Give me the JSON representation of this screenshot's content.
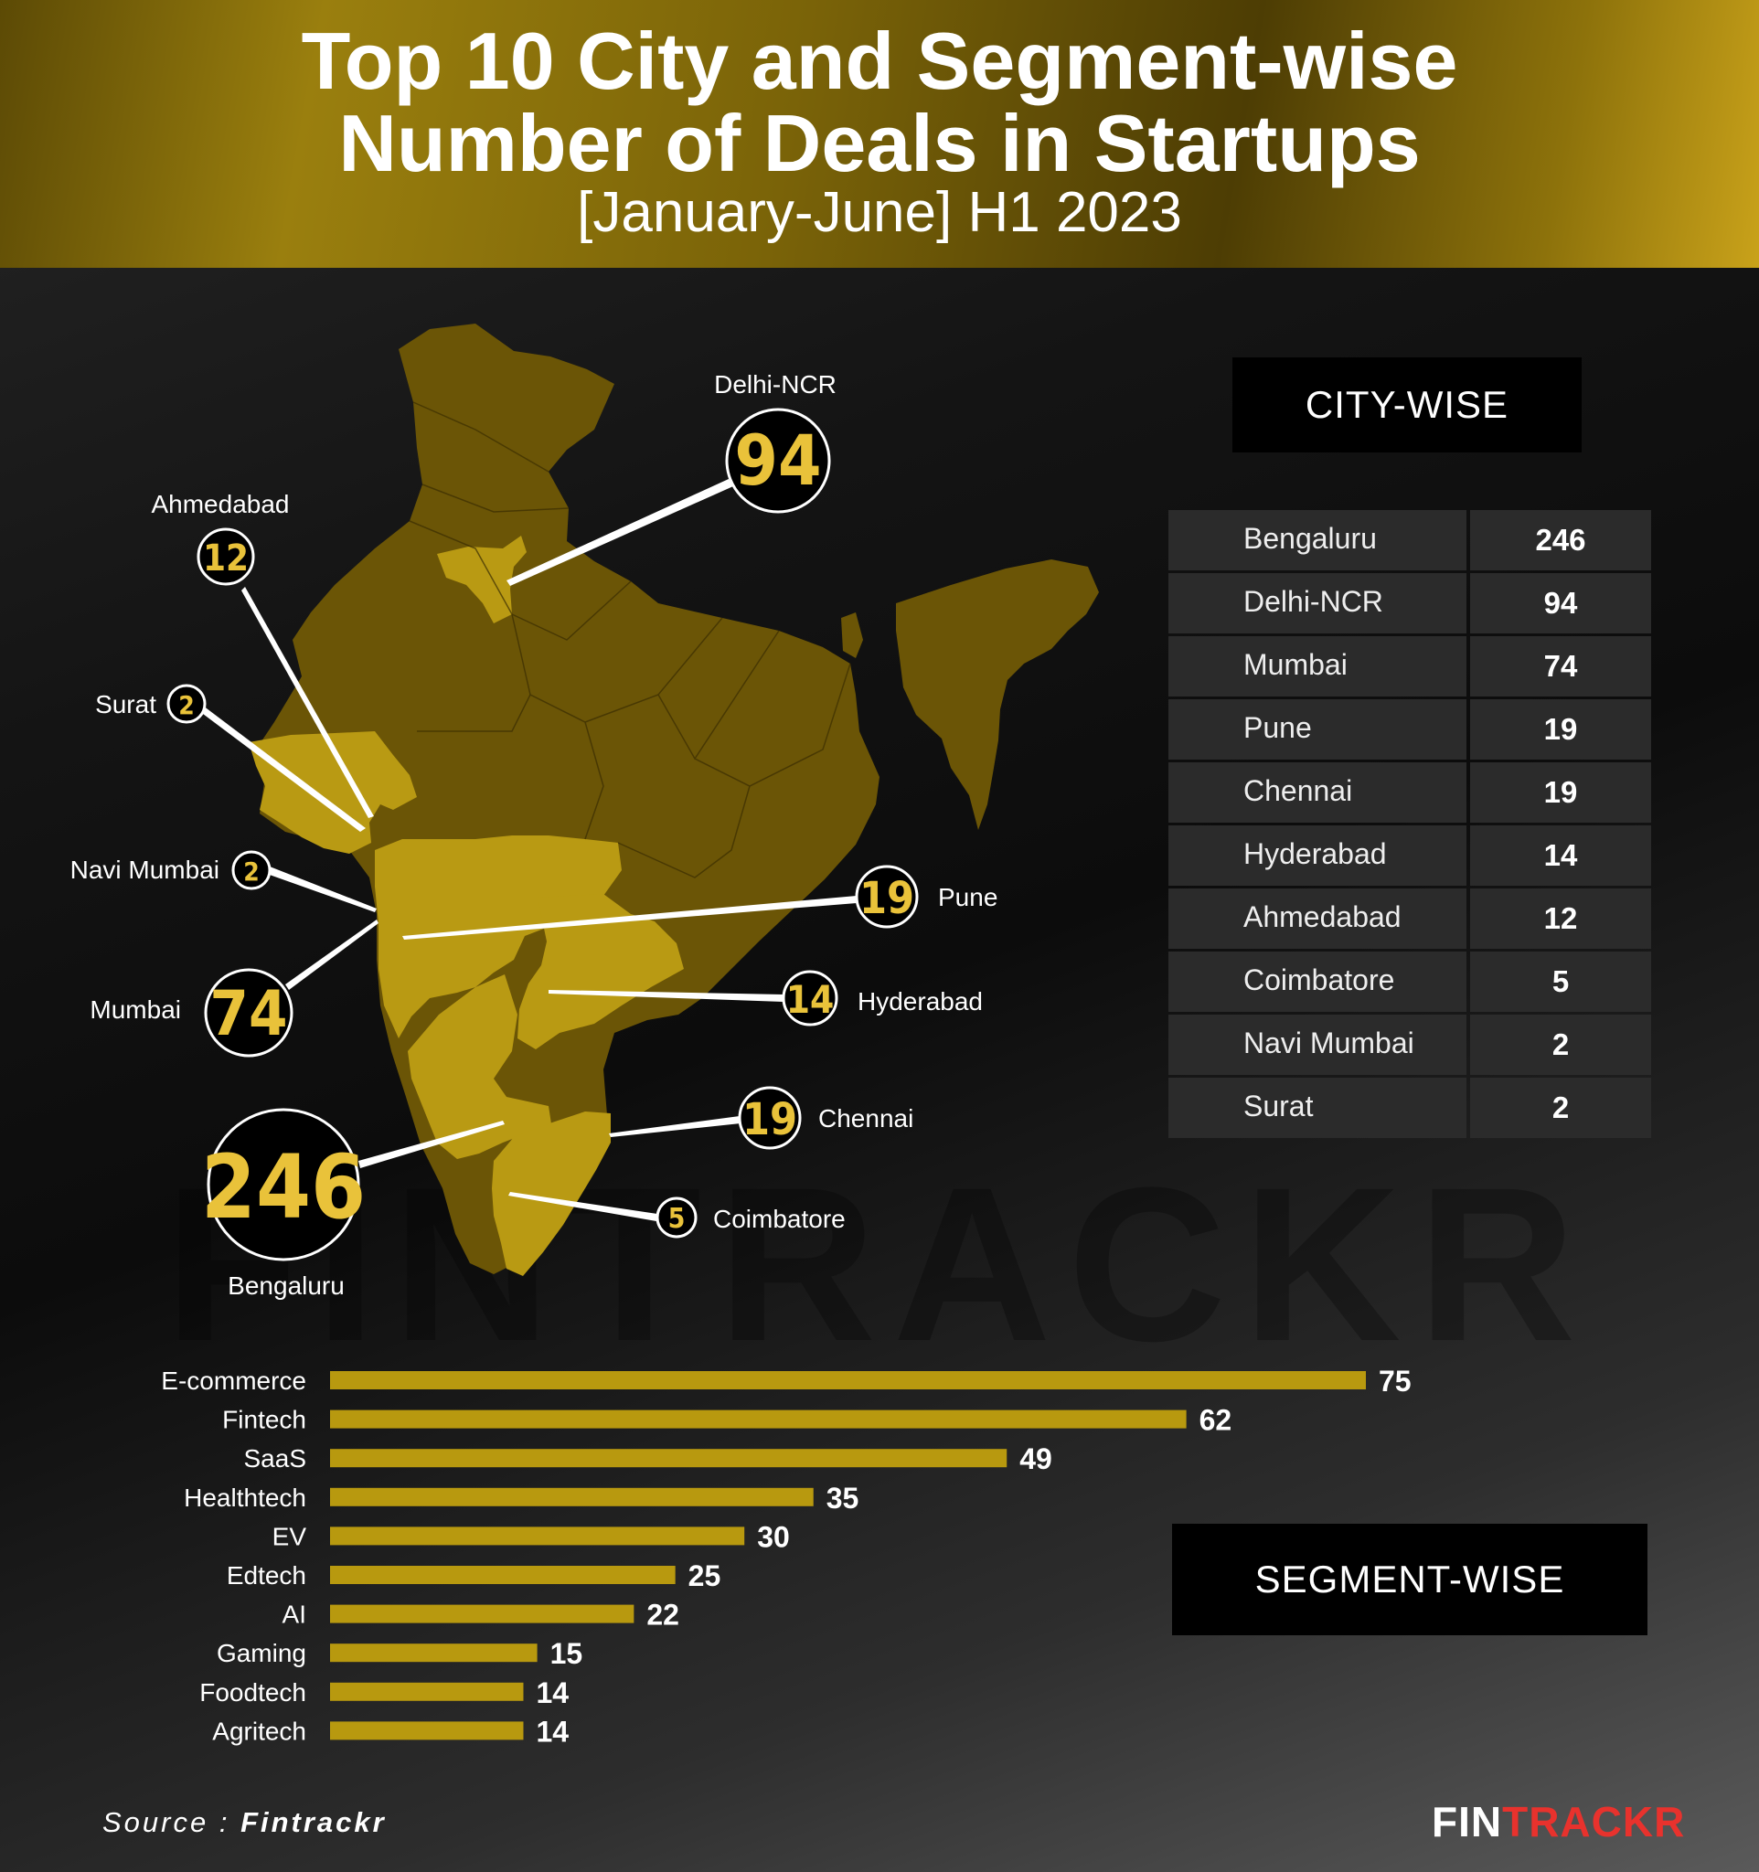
{
  "title_line1": "Top 10 City and Segment-wise",
  "title_line2": "Number of Deals in Startups",
  "subtitle": "[January-June] H1 2023",
  "city_heading": "CITY-WISE",
  "segment_heading": "SEGMENT-WISE",
  "watermark": "FINTRACKR",
  "source_prefix": "Source : ",
  "source_name": "Fintrackr",
  "brand_part1": "FIN",
  "brand_part2": "TRACKR",
  "colors": {
    "map_dark": "#6b5506",
    "map_light": "#b99a13",
    "bar": "#b8990f",
    "bubble_number": "#e9c23a",
    "brand_red": "#e8322d"
  },
  "map_labels": [
    {
      "city": "Delhi-NCR",
      "value": "94"
    },
    {
      "city": "Ahmedabad",
      "value": "12"
    },
    {
      "city": "Surat",
      "value": "2"
    },
    {
      "city": "Navi Mumbai",
      "value": "2"
    },
    {
      "city": "Mumbai",
      "value": "74"
    },
    {
      "city": "Pune",
      "value": "19"
    },
    {
      "city": "Hyderabad",
      "value": "14"
    },
    {
      "city": "Chennai",
      "value": "19"
    },
    {
      "city": "Coimbatore",
      "value": "5"
    },
    {
      "city": "Bengaluru",
      "value": "246"
    }
  ],
  "chart_data": [
    {
      "type": "table",
      "title": "CITY-WISE",
      "rows": [
        {
          "city": "Bengaluru",
          "deals": 246
        },
        {
          "city": "Delhi-NCR",
          "deals": 94
        },
        {
          "city": "Mumbai",
          "deals": 74
        },
        {
          "city": "Pune",
          "deals": 19
        },
        {
          "city": "Chennai",
          "deals": 19
        },
        {
          "city": "Hyderabad",
          "deals": 14
        },
        {
          "city": "Ahmedabad",
          "deals": 12
        },
        {
          "city": "Coimbatore",
          "deals": 5
        },
        {
          "city": "Navi Mumbai",
          "deals": 2
        },
        {
          "city": "Surat",
          "deals": 2
        }
      ]
    },
    {
      "type": "bar",
      "orientation": "horizontal",
      "title": "SEGMENT-WISE",
      "categories": [
        "E-commerce",
        "Fintech",
        "SaaS",
        "Healthtech",
        "EV",
        "Edtech",
        "AI",
        "Gaming",
        "Foodtech",
        "Agritech"
      ],
      "values": [
        75,
        62,
        49,
        35,
        30,
        25,
        22,
        15,
        14,
        14
      ],
      "xlim": [
        0,
        75
      ],
      "grid": false
    }
  ]
}
